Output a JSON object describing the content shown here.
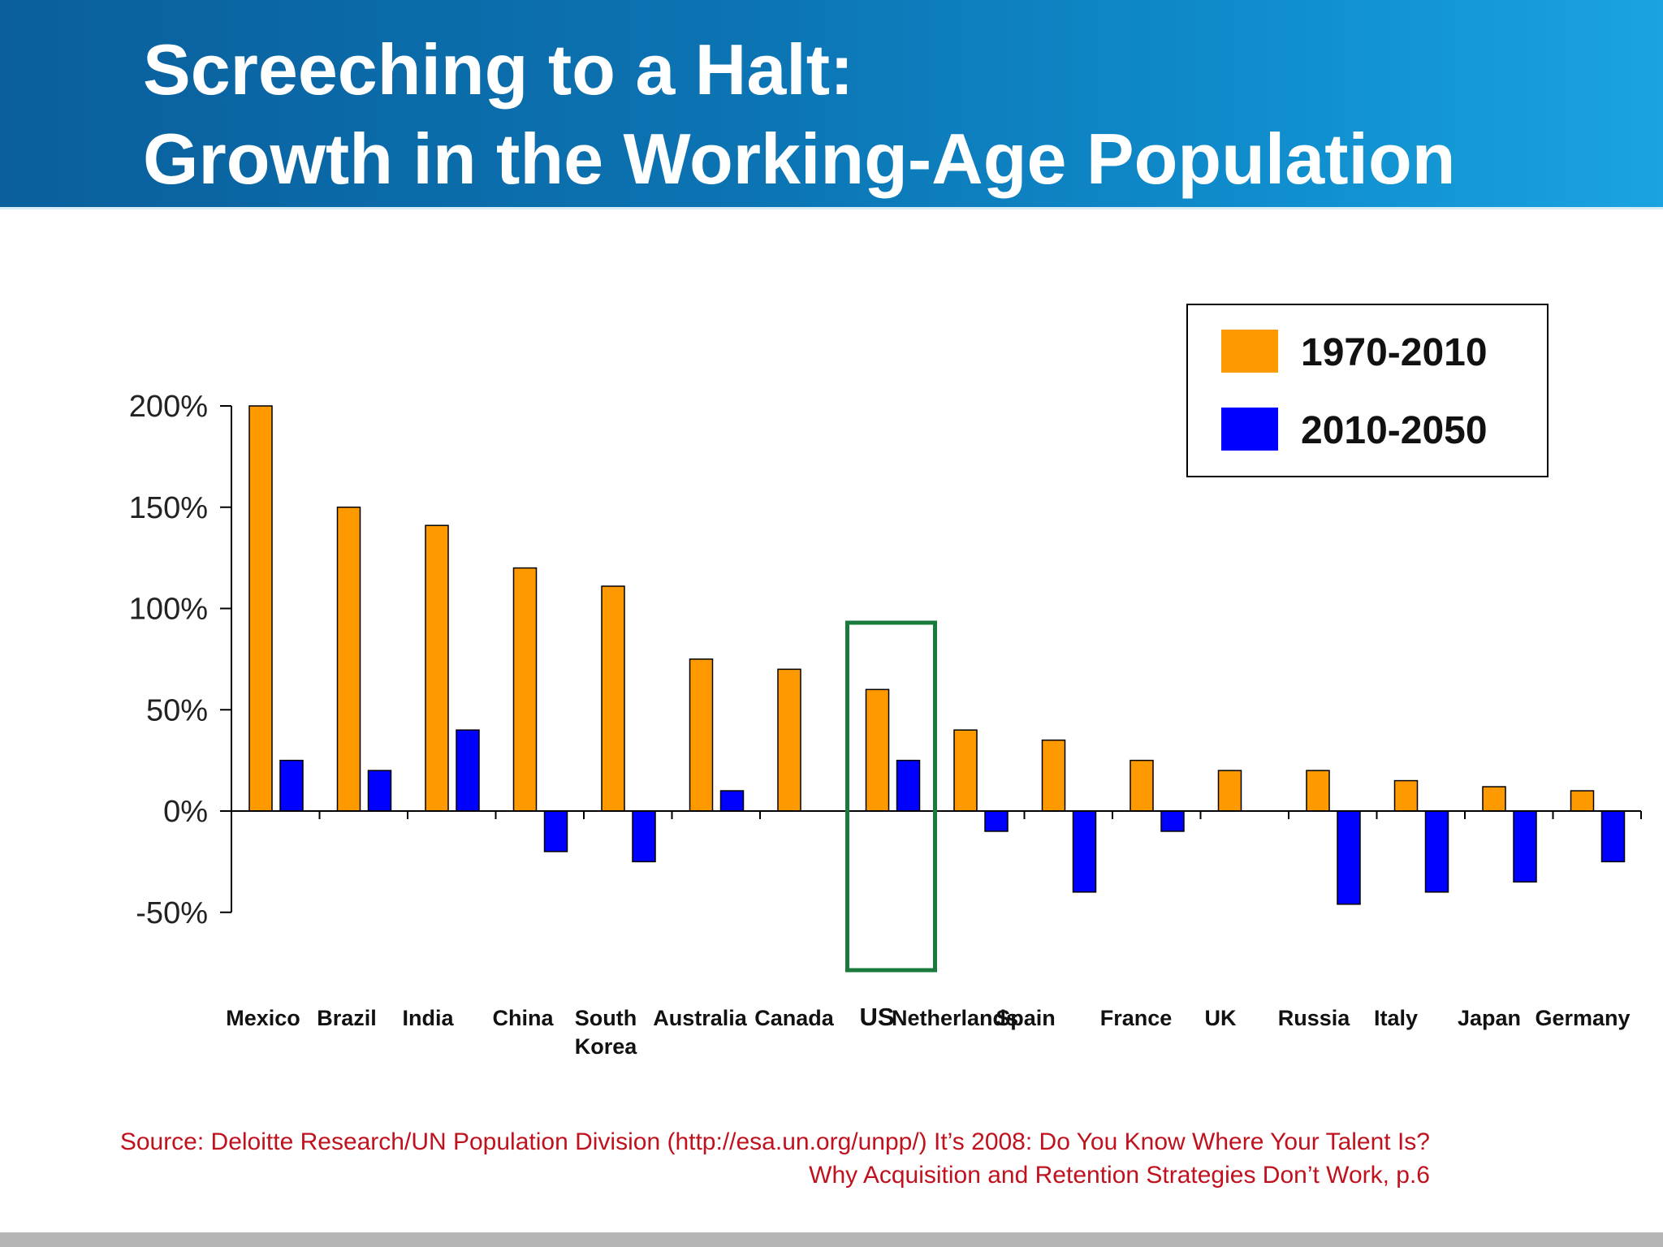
{
  "slide": {
    "title_line1": "Screeching to a Halt:",
    "title_line2": "Growth in the Working-Age Population",
    "source_line1": "Source: Deloitte Research/UN Population Division (http://esa.un.org/unpp/) It’s 2008:   Do You Know Where Your Talent Is?",
    "source_line2": "Why Acquisition and Retention Strategies Don’t Work, p.6",
    "colors": {
      "header_start": "#0a5f9c",
      "header_end": "#1aa3df",
      "title_text": "#ffffff",
      "source_text": "#c0121e",
      "highlight_box": "#1a7a3c"
    }
  },
  "chart_data": {
    "type": "bar",
    "categories": [
      "Mexico",
      "Brazil",
      "India",
      "China",
      "South Korea",
      "Australia",
      "Canada",
      "US",
      "Netherlands",
      "Spain",
      "France",
      "UK",
      "Russia",
      "Italy",
      "Japan",
      "Germany"
    ],
    "category_lines": [
      [
        "Mexico"
      ],
      [
        "Brazil"
      ],
      [
        "India"
      ],
      [
        "China"
      ],
      [
        "South",
        "Korea"
      ],
      [
        "Australia"
      ],
      [
        "Canada"
      ],
      [
        "US"
      ],
      [
        "Netherlands"
      ],
      [
        "Spain"
      ],
      [
        "France"
      ],
      [
        "UK"
      ],
      [
        "Russia"
      ],
      [
        "Italy"
      ],
      [
        "Japan"
      ],
      [
        "Germany"
      ]
    ],
    "series": [
      {
        "name": "1970-2010",
        "color": "#ff9900",
        "values": [
          200,
          150,
          141,
          120,
          111,
          75,
          70,
          60,
          40,
          35,
          25,
          20,
          20,
          15,
          12,
          10
        ]
      },
      {
        "name": "2010-2050",
        "color": "#0000ff",
        "values": [
          25,
          20,
          40,
          -20,
          -25,
          10,
          0,
          25,
          -10,
          -40,
          -10,
          0,
          -46,
          -40,
          -35,
          -25
        ]
      }
    ],
    "ylim": [
      -50,
      200
    ],
    "yticks": [
      -50,
      0,
      50,
      100,
      150,
      200
    ],
    "ytick_labels": [
      "-50%",
      "0%",
      "50%",
      "100%",
      "150%",
      "200%"
    ],
    "highlight_category": "US",
    "legend_position": "top-right",
    "grid": false
  }
}
